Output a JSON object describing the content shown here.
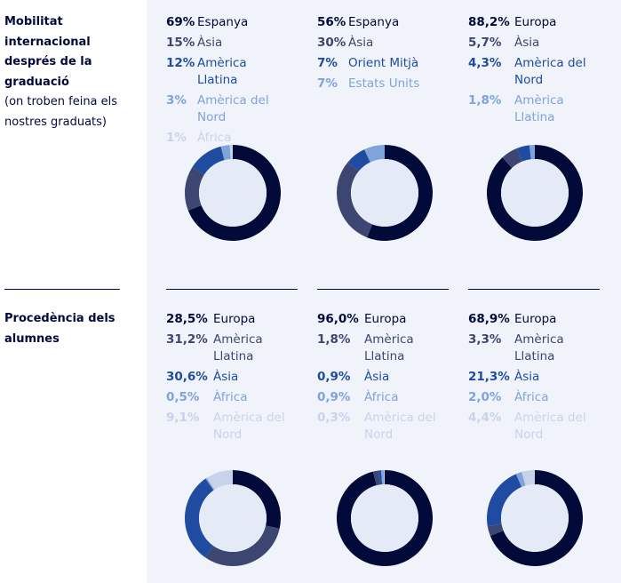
{
  "rows": [
    {
      "title": "Mobilitat internacional després de la graduació",
      "subtitle": "(on troben feina els nostres graduats)"
    },
    {
      "title": "Procedència dels alumnes",
      "subtitle": ""
    }
  ],
  "colors": [
    "#020a3a",
    "#3d4670",
    "#1f4ba0",
    "#7fa3db",
    "#c8d3ea"
  ],
  "chart_data": [
    {
      "type": "pie",
      "row": 0,
      "items": [
        {
          "pct": "69%",
          "label": "Espanya",
          "value": 69
        },
        {
          "pct": "15%",
          "label": "Àsia",
          "value": 15
        },
        {
          "pct": "12%",
          "label": "Amèrica Llatina",
          "value": 12
        },
        {
          "pct": "3%",
          "label": "Amèrica del Nord",
          "value": 3
        },
        {
          "pct": "1%",
          "label": "Àfrica",
          "value": 1
        }
      ]
    },
    {
      "type": "pie",
      "row": 0,
      "items": [
        {
          "pct": "56%",
          "label": "Espanya",
          "value": 56
        },
        {
          "pct": "30%",
          "label": "Àsia",
          "value": 30
        },
        {
          "pct": "7%",
          "label": "Orient Mitjà",
          "value": 7
        },
        {
          "pct": "7%",
          "label": "Estats Units",
          "value": 7
        }
      ]
    },
    {
      "type": "pie",
      "row": 0,
      "items": [
        {
          "pct": "88,2%",
          "label": "Europa",
          "value": 88.2
        },
        {
          "pct": "5,7%",
          "label": "Àsia",
          "value": 5.7
        },
        {
          "pct": "4,3%",
          "label": "Amèrica del Nord",
          "value": 4.3
        },
        {
          "pct": "1,8%",
          "label": "Amèrica Llatina",
          "value": 1.8
        }
      ]
    },
    {
      "type": "pie",
      "row": 1,
      "items": [
        {
          "pct": "28,5%",
          "label": "Europa",
          "value": 28.5
        },
        {
          "pct": "31,2%",
          "label": "Amèrica Llatina",
          "value": 31.2
        },
        {
          "pct": "30,6%",
          "label": "Àsia",
          "value": 30.6
        },
        {
          "pct": "0,5%",
          "label": "Àfrica",
          "value": 0.5
        },
        {
          "pct": "9,1%",
          "label": "Amèrica del Nord",
          "value": 9.1
        }
      ]
    },
    {
      "type": "pie",
      "row": 1,
      "items": [
        {
          "pct": "96,0%",
          "label": "Europa",
          "value": 96.0
        },
        {
          "pct": "1,8%",
          "label": "Amèrica Llatina",
          "value": 1.8
        },
        {
          "pct": "0,9%",
          "label": "Àsia",
          "value": 0.9
        },
        {
          "pct": "0,9%",
          "label": "Àfrica",
          "value": 0.9
        },
        {
          "pct": "0,3%",
          "label": "Amèrica del Nord",
          "value": 0.3
        }
      ]
    },
    {
      "type": "pie",
      "row": 1,
      "items": [
        {
          "pct": "68,9%",
          "label": "Europa",
          "value": 68.9
        },
        {
          "pct": "3,3%",
          "label": "Amèrica Llatina",
          "value": 3.3
        },
        {
          "pct": "21,3%",
          "label": "Àsia",
          "value": 21.3
        },
        {
          "pct": "2,0%",
          "label": "Àfrica",
          "value": 2.0
        },
        {
          "pct": "4,4%",
          "label": "Amèrica del Nord",
          "value": 4.4
        }
      ]
    }
  ]
}
